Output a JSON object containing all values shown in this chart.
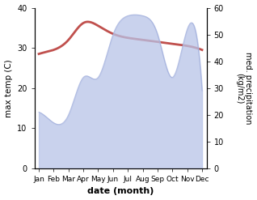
{
  "months": [
    "Jan",
    "Feb",
    "Mar",
    "Apr",
    "May",
    "Jun",
    "Jul",
    "Aug",
    "Sep",
    "Oct",
    "Nov",
    "Dec"
  ],
  "temperature": [
    28.5,
    29.5,
    32.0,
    36.2,
    35.5,
    33.5,
    32.5,
    32.0,
    31.5,
    31.0,
    30.5,
    29.5
  ],
  "precipitation": [
    21.0,
    17.0,
    20.0,
    34.0,
    34.0,
    50.0,
    57.0,
    57.0,
    50.0,
    34.0,
    52.0,
    29.0
  ],
  "temp_color": "#c0504d",
  "precip_fill_color": "#b8c4e8",
  "precip_line_color": "#9aa8d8",
  "bg_color": "#ffffff",
  "xlabel": "date (month)",
  "ylabel_left": "max temp (C)",
  "ylabel_right": "med. precipitation\n(kg/m2)",
  "ylim_left": [
    0,
    40
  ],
  "ylim_right": [
    0,
    60
  ],
  "yticks_left": [
    0,
    10,
    20,
    30,
    40
  ],
  "yticks_right": [
    0,
    10,
    20,
    30,
    40,
    50,
    60
  ],
  "figsize": [
    3.18,
    2.47
  ],
  "dpi": 100
}
